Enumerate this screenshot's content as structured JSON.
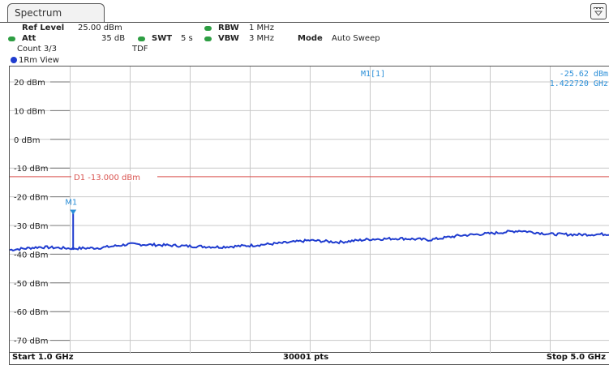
{
  "window": {
    "tab_title": "Spectrum",
    "menu_icon": "settings-menu-icon"
  },
  "settings": {
    "ref_level_label": "Ref Level",
    "ref_level_value": "25.00 dBm",
    "rbw_label": "RBW",
    "rbw_value": "1 MHz",
    "att_label": "Att",
    "att_value": "35 dB",
    "swt_label": "SWT",
    "swt_value": "5 s",
    "vbw_label": "VBW",
    "vbw_value": "3 MHz",
    "mode_label": "Mode",
    "mode_value": "Auto Sweep",
    "count_text": "Count 3/3",
    "tdf_text": "TDF"
  },
  "trace": {
    "label": "1Rm View"
  },
  "marker": {
    "readout_name": "M1[1]",
    "readout_level": "-25.62 dBm",
    "readout_freq": "1.422720 GHz",
    "label": "M1",
    "x_ghz": 1.4227,
    "y_dbm": -25.62
  },
  "display_line": {
    "label": "D1  -13.000 dBm",
    "y_dbm": -13.0,
    "color": "#d9534f"
  },
  "footer": {
    "start": "Start 1.0 GHz",
    "points": "30001 pts",
    "stop": "Stop 5.0 GHz"
  },
  "chart_data": {
    "type": "line",
    "y_tick_labels": [
      "20 dBm",
      "10 dBm",
      "0 dBm",
      "-10 dBm",
      "-20 dBm",
      "-30 dBm",
      "-40 dBm",
      "-50 dBm",
      "-60 dBm",
      "-70 dBm"
    ],
    "y_ticks": [
      20,
      10,
      0,
      -10,
      -20,
      -30,
      -40,
      -50,
      -60,
      -70
    ],
    "ylim": [
      -80,
      25
    ],
    "xlim": [
      1.0,
      5.0
    ],
    "grid": true,
    "trace_color": "#1f3ccf",
    "series": [
      {
        "x": [
          1.0,
          1.2,
          1.42,
          1.6,
          1.8,
          2.0,
          2.2,
          2.4,
          2.6,
          2.8,
          3.0,
          3.2,
          3.4,
          3.6,
          3.8,
          4.0,
          4.2,
          4.4,
          4.6,
          4.8,
          5.0
        ],
        "values": [
          -38.5,
          -37.5,
          -38.0,
          -37.8,
          -36.5,
          -36.8,
          -37.2,
          -37.5,
          -37.0,
          -36.2,
          -35.2,
          -35.8,
          -34.8,
          -34.5,
          -35.0,
          -33.5,
          -32.8,
          -31.8,
          -33.0,
          -33.2,
          -33.0
        ]
      }
    ]
  }
}
